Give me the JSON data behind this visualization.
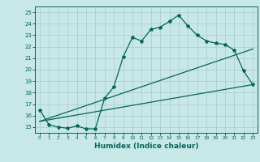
{
  "title": "",
  "xlabel": "Humidex (Indice chaleur)",
  "bg_color": "#c8e8e8",
  "grid_color": "#b0d0d0",
  "line_color": "#006858",
  "xlim": [
    -0.5,
    23.5
  ],
  "ylim": [
    14.5,
    25.5
  ],
  "yticks": [
    15,
    16,
    17,
    18,
    19,
    20,
    21,
    22,
    23,
    24,
    25
  ],
  "xticks": [
    0,
    1,
    2,
    3,
    4,
    5,
    6,
    7,
    8,
    9,
    10,
    11,
    12,
    13,
    14,
    15,
    16,
    17,
    18,
    19,
    20,
    21,
    22,
    23
  ],
  "curve1_x": [
    0,
    1,
    2,
    3,
    4,
    5,
    6,
    7,
    8,
    9,
    10,
    11,
    12,
    13,
    14,
    15,
    16,
    17,
    18,
    19,
    20,
    21,
    22,
    23
  ],
  "curve1_y": [
    16.5,
    15.2,
    15.0,
    14.9,
    15.1,
    14.85,
    14.85,
    17.5,
    18.5,
    21.1,
    22.8,
    22.5,
    23.5,
    23.7,
    24.2,
    24.75,
    23.8,
    23.0,
    22.5,
    22.3,
    22.2,
    21.7,
    19.9,
    18.7
  ],
  "line2_x": [
    0,
    23
  ],
  "line2_y": [
    15.5,
    18.7
  ],
  "line3_x": [
    0,
    23
  ],
  "line3_y": [
    15.5,
    21.8
  ]
}
